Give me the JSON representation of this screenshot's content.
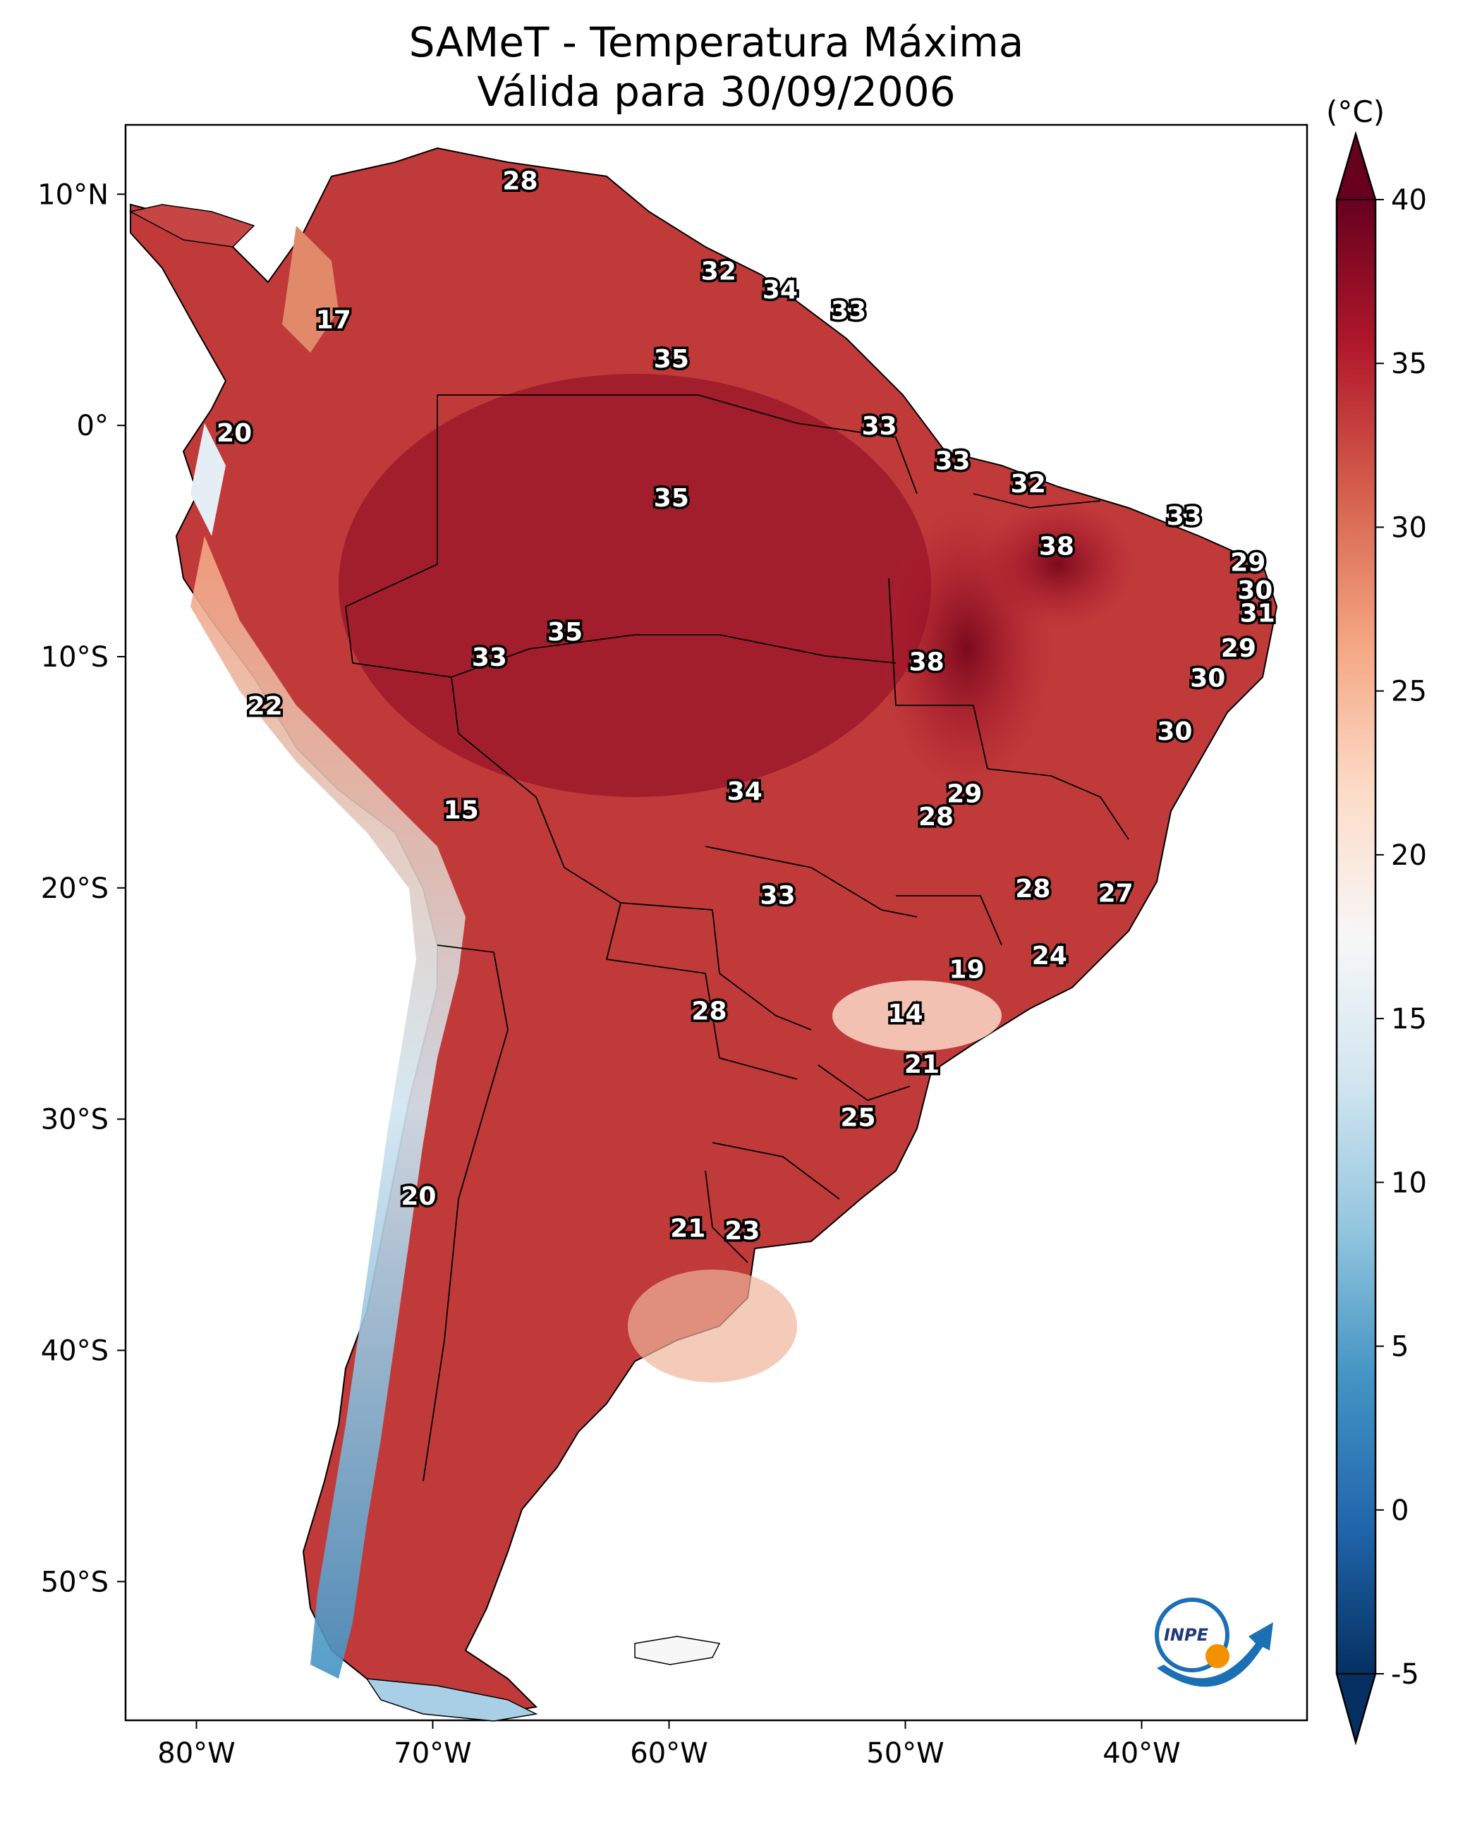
{
  "title": {
    "line1": "SAMeT - Temperatura Máxima",
    "line2": "Válida para 30/09/2006"
  },
  "axes": {
    "x_ticks": [
      {
        "label": "80°W",
        "lon": -80
      },
      {
        "label": "70°W",
        "lon": -70
      },
      {
        "label": "60°W",
        "lon": -60
      },
      {
        "label": "50°W",
        "lon": -50
      },
      {
        "label": "40°W",
        "lon": -40
      }
    ],
    "y_ticks": [
      {
        "label": "10°N",
        "lat": 10
      },
      {
        "label": "0°",
        "lat": 0
      },
      {
        "label": "10°S",
        "lat": -10
      },
      {
        "label": "20°S",
        "lat": -20
      },
      {
        "label": "30°S",
        "lat": -30
      },
      {
        "label": "40°S",
        "lat": -40
      },
      {
        "label": "50°S",
        "lat": -50
      }
    ],
    "lon_range": [
      -83,
      -33
    ],
    "lat_range": [
      -56,
      13
    ]
  },
  "colorbar": {
    "unit": "(°C)",
    "min": -5,
    "max": 40,
    "ticks": [
      "-5",
      "0",
      "5",
      "10",
      "15",
      "20",
      "25",
      "30",
      "35",
      "40"
    ],
    "colors": [
      "#053061",
      "#2166ac",
      "#4393c3",
      "#92c5de",
      "#d1e5f0",
      "#f7f7f7",
      "#fddbc7",
      "#f4a582",
      "#d6604d",
      "#b2182b",
      "#67001f"
    ]
  },
  "contour_labels": [
    {
      "text": "28",
      "lon": -66.3,
      "lat": 10.6
    },
    {
      "text": "17",
      "lon": -74.2,
      "lat": 4.6
    },
    {
      "text": "32",
      "lon": -57.9,
      "lat": 6.7
    },
    {
      "text": "34",
      "lon": -55.3,
      "lat": 5.9
    },
    {
      "text": "33",
      "lon": -52.4,
      "lat": 5.0
    },
    {
      "text": "35",
      "lon": -59.9,
      "lat": 2.9
    },
    {
      "text": "20",
      "lon": -78.4,
      "lat": -0.3
    },
    {
      "text": "33",
      "lon": -51.1,
      "lat": 0.0
    },
    {
      "text": "33",
      "lon": -48.0,
      "lat": -1.5
    },
    {
      "text": "35",
      "lon": -59.9,
      "lat": -3.1
    },
    {
      "text": "32",
      "lon": -44.8,
      "lat": -2.5
    },
    {
      "text": "33",
      "lon": -38.2,
      "lat": -3.9
    },
    {
      "text": "38",
      "lon": -43.6,
      "lat": -5.2
    },
    {
      "text": "29",
      "lon": -35.5,
      "lat": -5.9
    },
    {
      "text": "30",
      "lon": -35.2,
      "lat": -7.1
    },
    {
      "text": "31",
      "lon": -35.1,
      "lat": -8.1
    },
    {
      "text": "35",
      "lon": -64.4,
      "lat": -8.9
    },
    {
      "text": "33",
      "lon": -67.6,
      "lat": -10.0
    },
    {
      "text": "29",
      "lon": -35.9,
      "lat": -9.6
    },
    {
      "text": "38",
      "lon": -49.1,
      "lat": -10.2
    },
    {
      "text": "30",
      "lon": -37.2,
      "lat": -10.9
    },
    {
      "text": "22",
      "lon": -77.1,
      "lat": -12.1
    },
    {
      "text": "30",
      "lon": -38.6,
      "lat": -13.2
    },
    {
      "text": "15",
      "lon": -68.8,
      "lat": -16.6
    },
    {
      "text": "34",
      "lon": -56.8,
      "lat": -15.8
    },
    {
      "text": "29",
      "lon": -47.5,
      "lat": -15.9
    },
    {
      "text": "28",
      "lon": -48.7,
      "lat": -16.9
    },
    {
      "text": "33",
      "lon": -55.4,
      "lat": -20.3
    },
    {
      "text": "28",
      "lon": -44.6,
      "lat": -20.0
    },
    {
      "text": "27",
      "lon": -41.1,
      "lat": -20.2
    },
    {
      "text": "24",
      "lon": -43.9,
      "lat": -22.9
    },
    {
      "text": "19",
      "lon": -47.4,
      "lat": -23.5
    },
    {
      "text": "14",
      "lon": -50.0,
      "lat": -25.4
    },
    {
      "text": "28",
      "lon": -58.3,
      "lat": -25.3
    },
    {
      "text": "21",
      "lon": -49.3,
      "lat": -27.6
    },
    {
      "text": "25",
      "lon": -52.0,
      "lat": -29.9
    },
    {
      "text": "20",
      "lon": -70.6,
      "lat": -33.3
    },
    {
      "text": "21",
      "lon": -59.2,
      "lat": -34.7
    },
    {
      "text": "23",
      "lon": -56.9,
      "lat": -34.8
    }
  ],
  "logo": {
    "text": "INPE"
  }
}
